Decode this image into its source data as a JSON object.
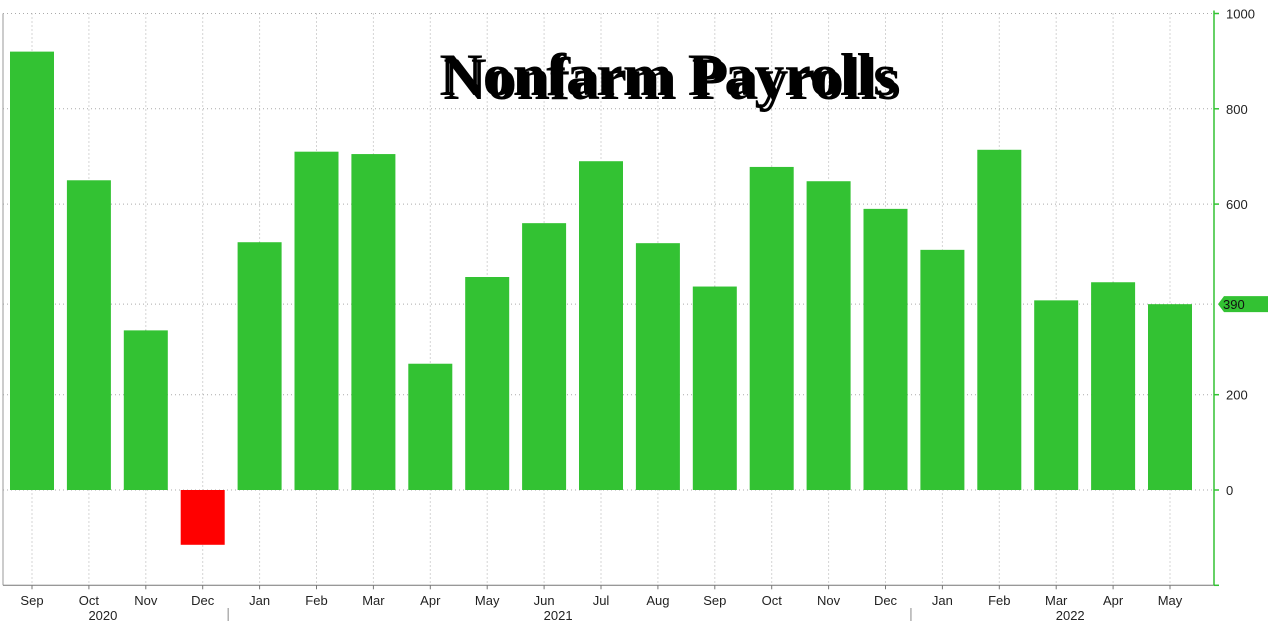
{
  "chart_data": {
    "type": "bar",
    "title": "Nonfarm Payrolls",
    "categories": [
      "Sep",
      "Oct",
      "Nov",
      "Dec",
      "Jan",
      "Feb",
      "Mar",
      "Apr",
      "May",
      "Jun",
      "Jul",
      "Aug",
      "Sep",
      "Oct",
      "Nov",
      "Dec",
      "Jan",
      "Feb",
      "Mar",
      "Apr",
      "May"
    ],
    "values": [
      920,
      650,
      335,
      -115,
      520,
      710,
      705,
      265,
      447,
      560,
      690,
      518,
      427,
      678,
      648,
      590,
      504,
      714,
      398,
      436,
      390
    ],
    "years": [
      {
        "label": "2020",
        "category_index": 1
      },
      {
        "label": "2021",
        "category_index": 9
      },
      {
        "label": "2022",
        "category_index": 18
      }
    ],
    "year_dividers_after_index": [
      3,
      15
    ],
    "yaxis": {
      "side": "right",
      "ticks": [
        0,
        200,
        600,
        800,
        1000
      ],
      "ylim": [
        -200,
        1000
      ]
    },
    "last_value_tag": "390",
    "grid": true,
    "colors": {
      "positive": "#33c233",
      "negative": "#ff0000",
      "axis": "#33c233",
      "grid": "#aaaaaa"
    }
  }
}
